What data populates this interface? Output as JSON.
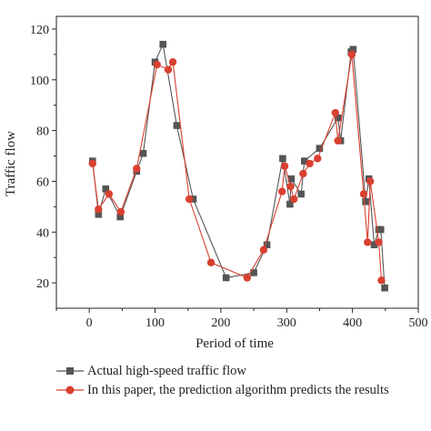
{
  "chart_data": {
    "type": "line",
    "xlabel": "Period of time",
    "ylabel": "Traffic flow",
    "xlim": [
      -50,
      500
    ],
    "ylim": [
      10,
      125
    ],
    "xticks": [
      0,
      100,
      200,
      300,
      400,
      500
    ],
    "yticks": [
      20,
      40,
      60,
      80,
      100,
      120
    ],
    "xtick_labels": [
      "0",
      "100",
      "200",
      "300",
      "400",
      "500"
    ],
    "ytick_labels": [
      "20",
      "40",
      "60",
      "80",
      "100",
      "120"
    ],
    "grid": false,
    "legend_position": "bottom",
    "series": [
      {
        "name": "Actual high-speed traffic flow",
        "color": "#555555",
        "marker": "square",
        "x": [
          5,
          14,
          25,
          47,
          72,
          82,
          100,
          112,
          133,
          158,
          208,
          250,
          270,
          294,
          305,
          307,
          322,
          327,
          350,
          378,
          382,
          398,
          401,
          420,
          425,
          433,
          440,
          443,
          449
        ],
        "y": [
          68,
          47,
          57,
          46,
          64,
          71,
          107,
          114,
          82,
          53,
          22,
          24,
          35,
          69,
          51,
          61,
          55,
          68,
          73,
          85,
          76,
          111,
          112,
          52,
          61,
          35,
          41,
          41,
          18
        ]
      },
      {
        "name": "In this paper, the prediction algorithm predicts the results",
        "color": "#d94030",
        "marker": "circle",
        "x": [
          5,
          14,
          30,
          48,
          72,
          103,
          120,
          127,
          152,
          185,
          240,
          265,
          293,
          297,
          306,
          311,
          325,
          335,
          347,
          374,
          378,
          399,
          417,
          423,
          427,
          440,
          444
        ],
        "y": [
          67,
          49,
          55,
          48,
          65,
          106,
          104,
          107,
          53,
          28,
          22,
          33,
          56,
          66,
          58,
          53,
          63,
          67,
          69,
          87,
          76,
          110,
          55,
          36,
          60,
          36,
          21
        ]
      }
    ]
  },
  "legend": {
    "items": [
      {
        "label": "Actual high-speed traffic flow",
        "icon": "square-marker-line"
      },
      {
        "label": "In this paper, the prediction algorithm predicts the results",
        "icon": "circle-marker-line"
      }
    ]
  }
}
